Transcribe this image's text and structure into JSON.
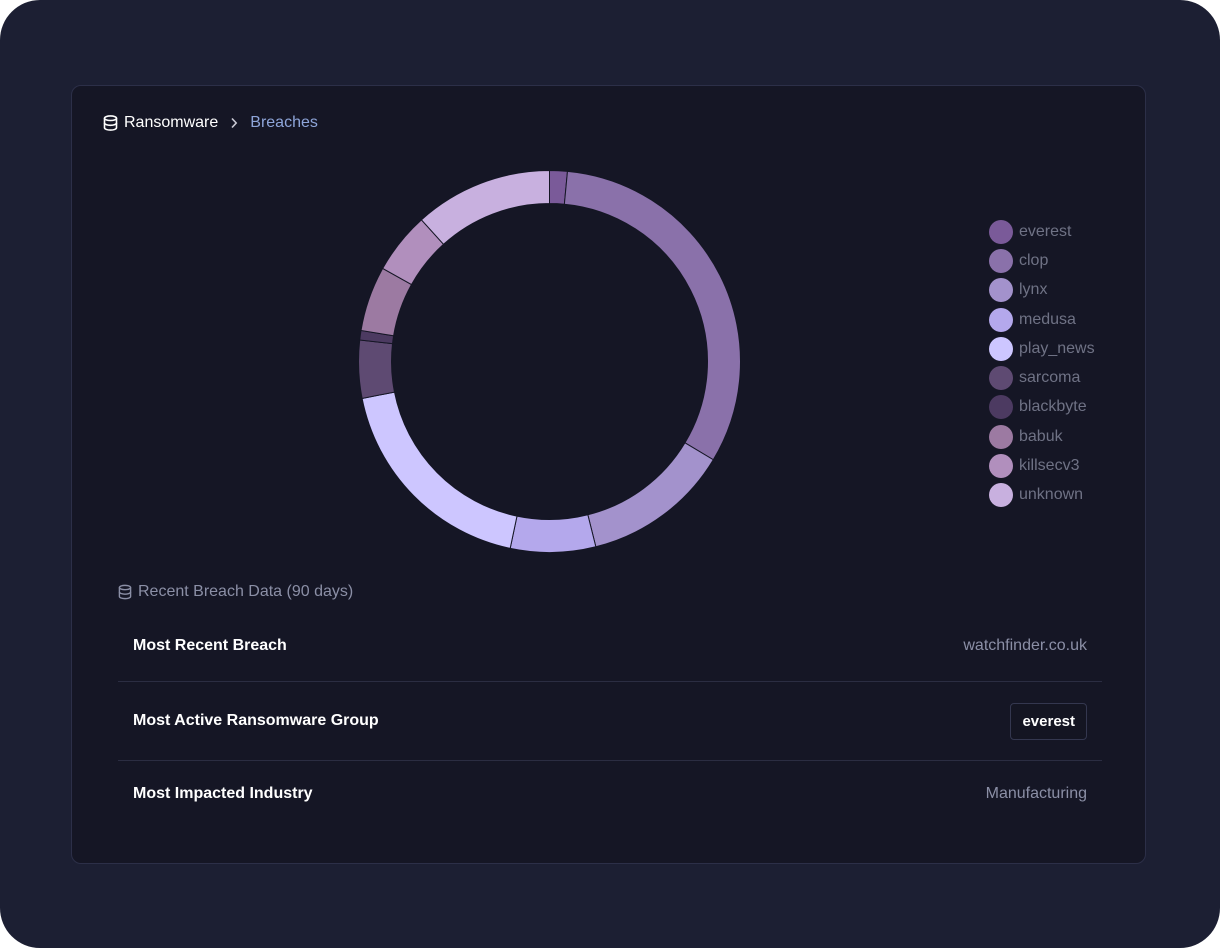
{
  "breadcrumb": {
    "root": "Ransomware",
    "current": "Breaches"
  },
  "chart_data": {
    "type": "pie",
    "categories": [
      "everest",
      "clop",
      "lynx",
      "medusa",
      "play_news",
      "sarcoma",
      "blackbyte",
      "babuk",
      "killsecv3",
      "unknown"
    ],
    "values": [
      1.5,
      32.1,
      12.5,
      7.2,
      18.6,
      4.9,
      0.8,
      5.5,
      5.2,
      11.7
    ],
    "colors": [
      "#7a5a99",
      "#8a71aa",
      "#a392cc",
      "#b4a8ec",
      "#cdc6ff",
      "#5e4a72",
      "#4c3a61",
      "#9c7aa2",
      "#b18fbd",
      "#c8b0df"
    ],
    "legend_position": "right"
  },
  "recent": {
    "title": "Recent Breach Data (90 days)",
    "rows": [
      {
        "label": "Most Recent Breach",
        "value": "watchfinder.co.uk"
      },
      {
        "label": "Most Active Ransomware Group",
        "value": "everest"
      },
      {
        "label": "Most Impacted Industry",
        "value": "Manufacturing"
      }
    ]
  },
  "icons": {
    "database": "database-icon",
    "chevron": "chevron-right-icon"
  }
}
